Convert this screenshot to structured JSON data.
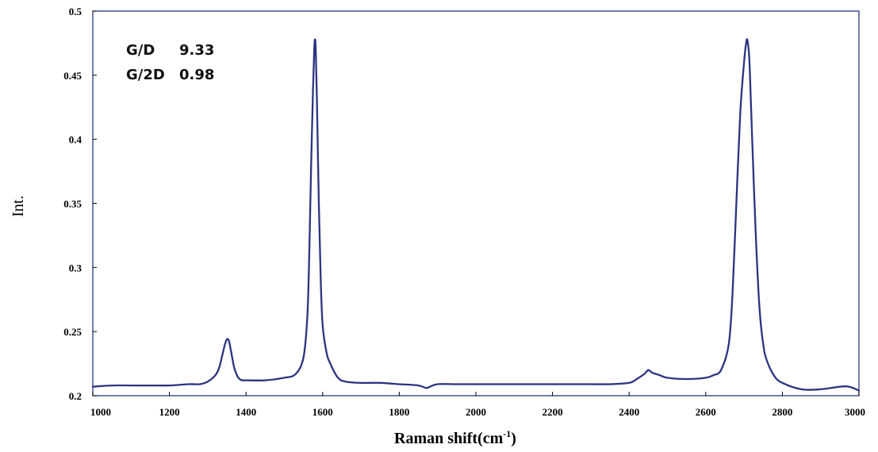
{
  "chart_data": {
    "type": "line",
    "xlabel": "Raman shift(cm",
    "xlabel_sup": "-1",
    "xlabel_close": ")",
    "ylabel": "Int.",
    "xlim": [
      1000,
      3000
    ],
    "ylim": [
      0.2,
      0.5
    ],
    "x_ticks": [
      "1000",
      "1200",
      "1400",
      "1600",
      "1800",
      "2000",
      "2200",
      "2400",
      "2600",
      "2800",
      "3000"
    ],
    "y_ticks": [
      "0.2",
      "0.25",
      "0.3",
      "0.35",
      "0.4",
      "0.45",
      "0.5"
    ],
    "grid": false,
    "annotations": [
      {
        "label": "G/D",
        "value": "9.33"
      },
      {
        "label": "G/2D",
        "value": "0.98"
      }
    ],
    "colors": {
      "line": "#2b3580",
      "frame": "#2b3580"
    },
    "series": [
      {
        "x": [
          1000,
          1050,
          1100,
          1150,
          1200,
          1250,
          1280,
          1300,
          1320,
          1330,
          1340,
          1345,
          1350,
          1355,
          1360,
          1365,
          1370,
          1380,
          1390,
          1400,
          1450,
          1500,
          1530,
          1550,
          1560,
          1565,
          1570,
          1575,
          1578,
          1580,
          1582,
          1585,
          1590,
          1595,
          1600,
          1610,
          1620,
          1640,
          1660,
          1700,
          1750,
          1800,
          1850,
          1870,
          1880,
          1900,
          1950,
          2000,
          2050,
          2100,
          2150,
          2200,
          2250,
          2300,
          2350,
          2400,
          2420,
          2440,
          2450,
          2460,
          2480,
          2500,
          2550,
          2600,
          2620,
          2640,
          2660,
          2670,
          2680,
          2690,
          2700,
          2705,
          2708,
          2712,
          2715,
          2720,
          2730,
          2740,
          2750,
          2760,
          2780,
          2800,
          2850,
          2900,
          2950,
          2975,
          3000
        ],
        "y": [
          0.207,
          0.208,
          0.208,
          0.208,
          0.208,
          0.209,
          0.209,
          0.211,
          0.216,
          0.222,
          0.234,
          0.24,
          0.244,
          0.243,
          0.236,
          0.228,
          0.221,
          0.214,
          0.212,
          0.212,
          0.212,
          0.214,
          0.217,
          0.23,
          0.262,
          0.31,
          0.38,
          0.44,
          0.47,
          0.478,
          0.47,
          0.43,
          0.35,
          0.29,
          0.255,
          0.234,
          0.225,
          0.214,
          0.211,
          0.21,
          0.21,
          0.209,
          0.208,
          0.206,
          0.207,
          0.209,
          0.209,
          0.209,
          0.209,
          0.209,
          0.209,
          0.209,
          0.209,
          0.209,
          0.209,
          0.21,
          0.213,
          0.217,
          0.22,
          0.218,
          0.216,
          0.214,
          0.213,
          0.214,
          0.216,
          0.22,
          0.24,
          0.28,
          0.35,
          0.42,
          0.46,
          0.474,
          0.478,
          0.47,
          0.455,
          0.41,
          0.33,
          0.27,
          0.24,
          0.227,
          0.215,
          0.21,
          0.205,
          0.205,
          0.207,
          0.207,
          0.204
        ]
      }
    ]
  }
}
